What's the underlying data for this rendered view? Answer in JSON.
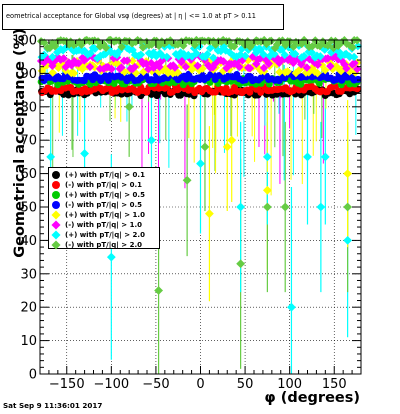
{
  "chart_data": {
    "type": "scatter",
    "title": "eometrical acceptance for Global vsφ (degrees) at | η | <= 1.0 at pT > 0.11",
    "xlabel": "φ (degrees)",
    "ylabel": "Geometrical acceptance (%)",
    "xlim": [
      -180,
      180
    ],
    "ylim": [
      0,
      100
    ],
    "xticks": [
      -150,
      -100,
      -50,
      0,
      50,
      100,
      150
    ],
    "yticks": [
      0,
      10,
      20,
      30,
      40,
      50,
      60,
      70,
      80,
      90,
      100
    ],
    "grid": true,
    "legend_position": "left-middle",
    "series": [
      {
        "name": "(+) with pT/|q| > 0.1",
        "color": "#000000",
        "marker": "circle",
        "y_center": 84.3
      },
      {
        "name": "(-) with pT/|q| > 0.1",
        "color": "#ff0000",
        "marker": "circle",
        "y_center": 85.2
      },
      {
        "name": "(+) with pT/|q| > 0.5",
        "color": "#00cc00",
        "marker": "circle",
        "y_center": 87.6
      },
      {
        "name": "(-) with pT/|q| > 0.5",
        "color": "#0000ff",
        "marker": "circle",
        "y_center": 88.8
      },
      {
        "name": "(+) with pT/|q| > 1.0",
        "color": "#ffff00",
        "marker": "diamond",
        "y_center": 92.0
      },
      {
        "name": "(-) with pT/|q| > 1.0",
        "color": "#ff00ff",
        "marker": "diamond",
        "y_center": 93.2
      },
      {
        "name": "(+) with pT/|q| > 2.0",
        "color": "#00ffff",
        "marker": "diamond",
        "y_center": 96.5
      },
      {
        "name": "(-) with pT/|q| > 2.0",
        "color": "#66cc44",
        "marker": "diamond",
        "y_center": 99.5
      }
    ],
    "notable_points": [
      {
        "series": 7,
        "x": -47,
        "y": 25
      },
      {
        "series": 7,
        "x": 45,
        "y": 33
      },
      {
        "series": 6,
        "x": 102,
        "y": 20
      },
      {
        "series": 6,
        "x": -100,
        "y": 35
      },
      {
        "series": 6,
        "x": 165,
        "y": 40
      },
      {
        "series": 7,
        "x": 165,
        "y": 50
      },
      {
        "series": 4,
        "x": 35,
        "y": 70
      },
      {
        "series": 4,
        "x": 75,
        "y": 55
      },
      {
        "series": 4,
        "x": 165,
        "y": 60
      },
      {
        "series": 6,
        "x": 45,
        "y": 50
      },
      {
        "series": 7,
        "x": 75,
        "y": 50
      },
      {
        "series": 7,
        "x": 95,
        "y": 50
      },
      {
        "series": 6,
        "x": 135,
        "y": 50
      },
      {
        "series": 7,
        "x": -15,
        "y": 58
      },
      {
        "series": 4,
        "x": 10,
        "y": 48
      },
      {
        "series": 7,
        "x": 5,
        "y": 68
      },
      {
        "series": 6,
        "x": -55,
        "y": 70
      },
      {
        "series": 6,
        "x": -168,
        "y": 65
      },
      {
        "series": 6,
        "x": -130,
        "y": 66
      },
      {
        "series": 7,
        "x": -80,
        "y": 80
      },
      {
        "series": 6,
        "x": 75,
        "y": 65
      },
      {
        "series": 6,
        "x": 120,
        "y": 65
      },
      {
        "series": 6,
        "x": 140,
        "y": 65
      },
      {
        "series": 6,
        "x": 0,
        "y": 63
      },
      {
        "series": 4,
        "x": 30,
        "y": 68
      }
    ]
  },
  "timestamp": "Sat Sep  9 11:36:01 2017",
  "colors": {
    "frame": "#000000",
    "grid": "#000000",
    "background": "#ffffff"
  }
}
